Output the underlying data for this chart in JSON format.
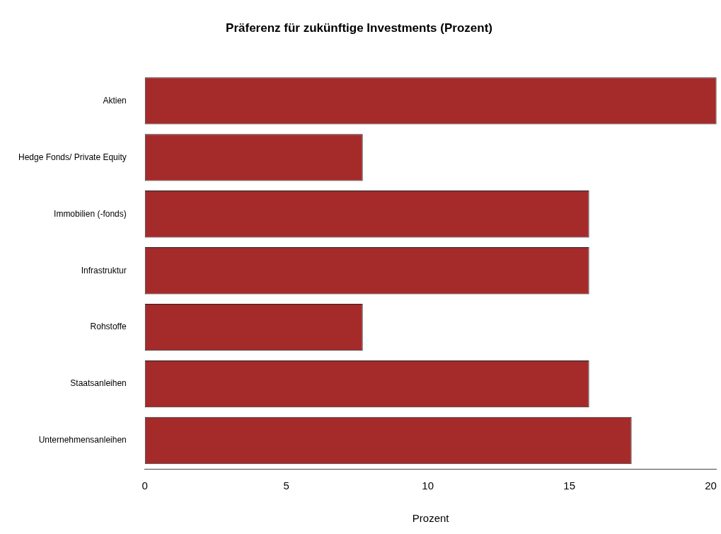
{
  "chart_data": {
    "type": "bar",
    "orientation": "horizontal",
    "title": "Präferenz für zukünftige Investments (Prozent)",
    "xlabel": "Prozent",
    "categories": [
      "Aktien",
      "Hedge Fonds/ Private Equity",
      "Immobilien (-fonds)",
      "Infrastruktur",
      "Rohstoffe",
      "Staatsanleihen",
      "Unternehmensanleihen"
    ],
    "values": [
      20.2,
      7.7,
      15.7,
      15.7,
      7.7,
      15.7,
      17.2
    ],
    "color": "#a52a2a",
    "xlim": [
      0,
      20.2
    ],
    "xticks": [
      0,
      5,
      10,
      15,
      20
    ]
  }
}
